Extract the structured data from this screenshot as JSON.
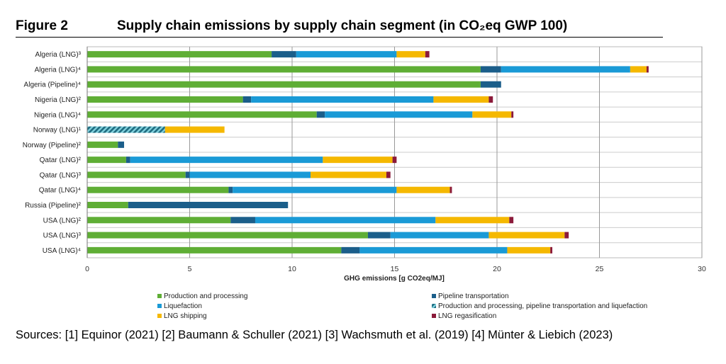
{
  "figure_label": "Figure 2",
  "figure_title": "Supply chain emissions by supply chain segment (in CO₂eq GWP 100)",
  "sources": "Sources: [1] Equinor (2021) [2] Baumann & Schuller (2021) [3] Wachsmuth et al. (2019) [4] Münter & Liebich (2023)",
  "chart_data": {
    "type": "bar",
    "orientation": "horizontal",
    "stacked": true,
    "title": "Supply chain emissions by supply chain segment (in CO₂eq GWP 100)",
    "xlabel": "GHG emissions [g CO2eq/MJ]",
    "ylabel": "",
    "xlim": [
      0,
      30
    ],
    "xticks": [
      0,
      5,
      10,
      15,
      20,
      25,
      30
    ],
    "grid": true,
    "legend_position": "bottom",
    "categories": [
      "Algeria (LNG)³",
      "Algeria (LNG)⁴",
      "Algeria (Pipeline)⁴",
      "Nigeria (LNG)²",
      "Nigeria (LNG)⁴",
      "Norway (LNG)¹",
      "Norway (Pipeline)²",
      "Qatar (LNG)²",
      "Qatar (LNG)³",
      "Qatar (LNG)⁴",
      "Russia (Pipeline)²",
      "USA (LNG)²",
      "USA (LNG)³",
      "USA (LNG)⁴"
    ],
    "series": [
      {
        "name": "Production and processing",
        "color": "#5fae35",
        "pattern": "solid",
        "values": [
          9.0,
          19.2,
          19.2,
          7.6,
          11.2,
          0,
          1.5,
          1.9,
          4.8,
          6.9,
          2.0,
          7.0,
          13.7,
          12.4
        ]
      },
      {
        "name": "Pipeline transportation",
        "color": "#1b5e8a",
        "pattern": "solid",
        "values": [
          1.2,
          1.0,
          1.0,
          0.4,
          0.4,
          0,
          0.3,
          0.2,
          0.2,
          0.2,
          7.8,
          1.2,
          1.1,
          0.9
        ]
      },
      {
        "name": "Liquefaction",
        "color": "#1a9ad6",
        "pattern": "solid",
        "values": [
          4.9,
          6.3,
          0,
          8.9,
          7.2,
          0,
          0,
          9.4,
          5.9,
          8.0,
          0,
          8.8,
          4.8,
          7.2
        ]
      },
      {
        "name": "Production and processing, pipeline transportation and liquefaction",
        "color": "#1f7a8c",
        "pattern": "hatched",
        "values": [
          0,
          0,
          0,
          0,
          0,
          3.8,
          0,
          0,
          0,
          0,
          0,
          0,
          0,
          0
        ]
      },
      {
        "name": "LNG shipping",
        "color": "#f5b800",
        "pattern": "solid",
        "values": [
          1.4,
          0.8,
          0,
          2.7,
          1.9,
          2.9,
          0,
          3.4,
          3.7,
          2.6,
          0,
          3.6,
          3.7,
          2.1
        ]
      },
      {
        "name": "LNG regasification",
        "color": "#8b1a3a",
        "pattern": "solid",
        "values": [
          0.2,
          0.1,
          0,
          0.2,
          0.1,
          0,
          0,
          0.2,
          0.2,
          0.1,
          0,
          0.2,
          0.2,
          0.1
        ]
      }
    ],
    "legend_order": [
      0,
      2,
      4,
      1,
      3,
      5
    ]
  }
}
